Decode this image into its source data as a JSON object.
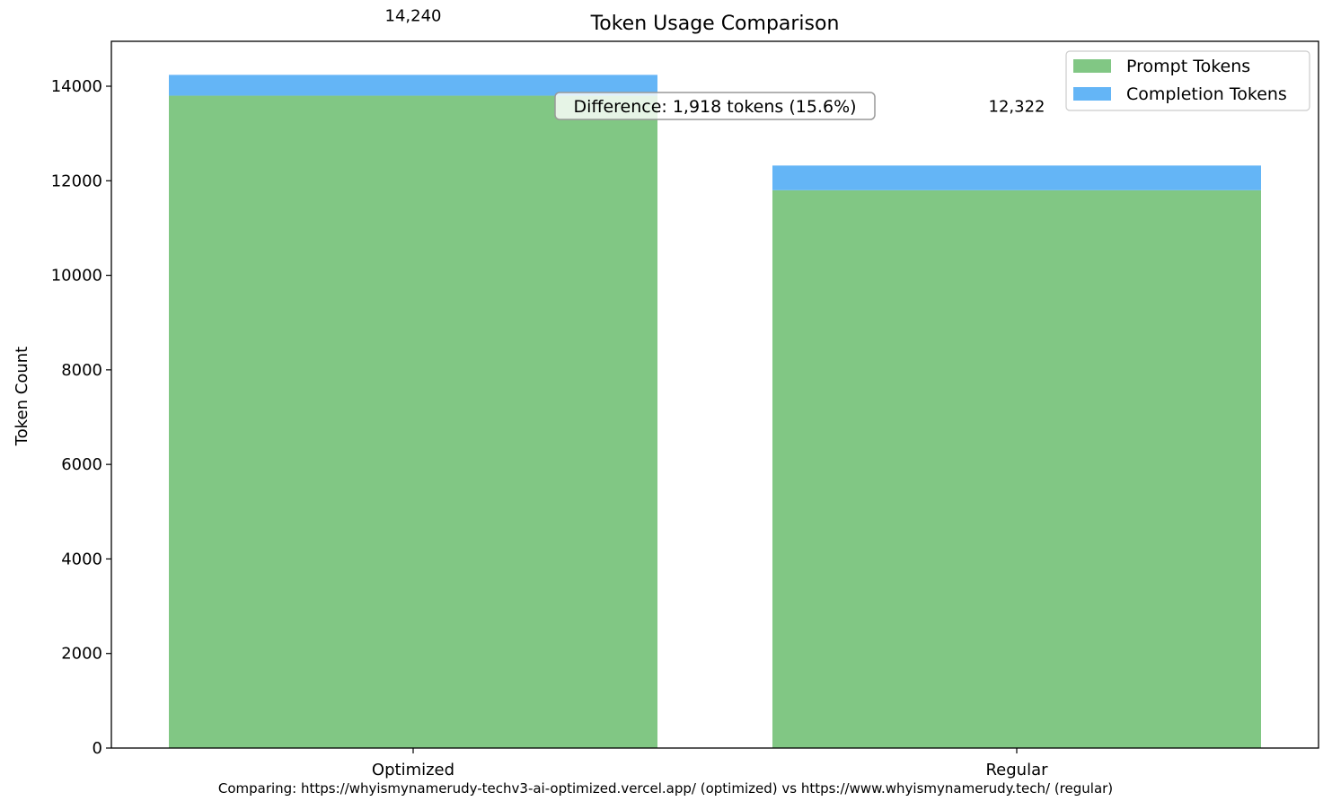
{
  "chart_data": {
    "type": "bar",
    "stacked": true,
    "title": "Token Usage Comparison",
    "xlabel": "",
    "ylabel": "Token Count",
    "categories": [
      "Optimized",
      "Regular"
    ],
    "series": [
      {
        "name": "Prompt Tokens",
        "color": "#81c784",
        "values": [
          13800,
          11800
        ]
      },
      {
        "name": "Completion Tokens",
        "color": "#64b5f6",
        "values": [
          440,
          522
        ]
      }
    ],
    "totals": [
      "14,240",
      "12,322"
    ],
    "ylim": [
      0,
      14950
    ],
    "yticks": [
      0,
      2000,
      4000,
      6000,
      8000,
      10000,
      12000,
      14000
    ],
    "ytick_labels": [
      "0",
      "2000",
      "4000",
      "6000",
      "8000",
      "10000",
      "12000",
      "14000"
    ],
    "annotation": "Difference: 1,918 tokens (15.6%)",
    "legend_position": "top-right",
    "grid": false
  },
  "footer": "Comparing: https://whyismynamerudy-techv3-ai-optimized.vercel.app/ (optimized) vs https://www.whyismynamerudy.tech/ (regular)"
}
